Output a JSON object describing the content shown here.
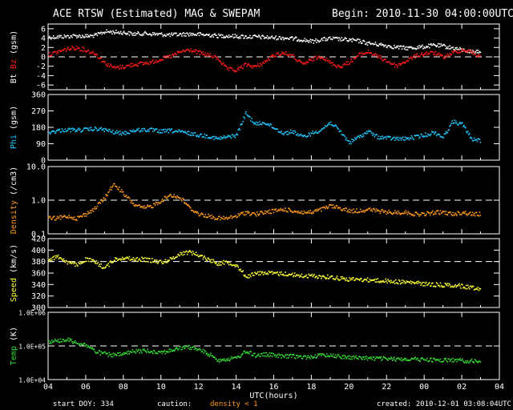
{
  "header": {
    "title": "ACE RTSW (Estimated) MAG & SWEPAM",
    "begin": "Begin: 2010-11-30 04:00:00UTC"
  },
  "footer": {
    "start_doy": "start DOY: 334",
    "caution_label": "caution:",
    "caution_text": "density < 1",
    "created": "created: 2010-12-01 03:08:04UTC"
  },
  "colors": {
    "background": "#000000",
    "axes": "#ffffff",
    "bt": "#ffffff",
    "bz": "#ff1a1a",
    "phi": "#1ec8ff",
    "density": "#ff9a1a",
    "speed": "#ffff33",
    "temp": "#33dd33"
  },
  "chart_data": {
    "type": "scatter",
    "xlabel": "UTC(hours)",
    "xlim": [
      0,
      24
    ],
    "x_ticks": [
      "04",
      "06",
      "08",
      "10",
      "12",
      "14",
      "16",
      "18",
      "20",
      "22",
      "00",
      "02",
      "04"
    ],
    "panels": [
      {
        "id": "mag",
        "ylabel_parts": [
          "Bt",
          "Bz",
          "(gsm)"
        ],
        "ylim": [
          -7,
          7
        ],
        "y_ticks": [
          "6",
          "4",
          "2",
          "0",
          "-2",
          "-4",
          "-6"
        ],
        "y_tick_values": [
          6,
          4,
          2,
          0,
          -2,
          -4,
          -6
        ],
        "dashed_line": 0,
        "series": [
          {
            "name": "Bt",
            "x": [
              0,
              0.5,
              1,
              1.5,
              2,
              2.5,
              3,
              3.5,
              4,
              4.5,
              5,
              5.5,
              6,
              6.5,
              7,
              7.5,
              8,
              8.5,
              9,
              9.5,
              10,
              10.5,
              11,
              11.5,
              12,
              12.5,
              13,
              13.5,
              14,
              14.5,
              15,
              15.5,
              16,
              16.5,
              17,
              17.5,
              18,
              18.5,
              19,
              19.5,
              20,
              20.5,
              21,
              21.5,
              22,
              22.5,
              23
            ],
            "y": [
              4.3,
              4.4,
              4.5,
              4.6,
              4.5,
              4.7,
              5.5,
              5.4,
              5.3,
              5.0,
              5.1,
              5.0,
              4.9,
              4.8,
              4.9,
              5.0,
              4.9,
              4.8,
              4.6,
              4.6,
              4.5,
              4.4,
              4.4,
              4.3,
              4.2,
              4.2,
              4.0,
              3.8,
              3.4,
              3.8,
              4.0,
              3.9,
              3.7,
              3.5,
              3.0,
              2.8,
              2.5,
              2.2,
              2.0,
              2.1,
              2.3,
              2.6,
              2.4,
              2.0,
              1.6,
              1.2,
              1.4
            ]
          },
          {
            "name": "Bz",
            "x": [
              0,
              0.5,
              1,
              1.5,
              2,
              2.5,
              3,
              3.5,
              4,
              4.5,
              5,
              5.5,
              6,
              6.5,
              7,
              7.5,
              8,
              8.5,
              9,
              9.5,
              10,
              10.5,
              11,
              11.5,
              12,
              12.5,
              13,
              13.5,
              14,
              14.5,
              15,
              15.5,
              16,
              16.5,
              17,
              17.5,
              18,
              18.5,
              19,
              19.5,
              20,
              20.5,
              21,
              21.5,
              22,
              22.5,
              23
            ],
            "y": [
              0.6,
              1.2,
              1.8,
              2.1,
              1.5,
              0.8,
              -1.2,
              -2.2,
              -2.0,
              -1.5,
              -1.3,
              -1.0,
              -0.3,
              0.2,
              1.2,
              1.6,
              1.0,
              0.5,
              -0.2,
              -2.5,
              -2.8,
              -1.5,
              -2.0,
              -1.0,
              0.5,
              1.0,
              0.2,
              -1.5,
              -0.5,
              0.3,
              -1.2,
              -2.0,
              -1.0,
              0.5,
              1.2,
              0.2,
              -0.8,
              -1.8,
              -0.8,
              0.3,
              0.8,
              1.0,
              0.0,
              1.0,
              1.6,
              1.2,
              0.0
            ]
          }
        ]
      },
      {
        "id": "phi",
        "ylabel_parts": [
          "Phi",
          "(gsm)"
        ],
        "ylim": [
          0,
          360
        ],
        "y_ticks": [
          "360",
          "270",
          "180",
          "90",
          "0"
        ],
        "y_tick_values": [
          360,
          270,
          180,
          90,
          0
        ],
        "dashed_line": null,
        "series": [
          {
            "name": "Phi",
            "x": [
              0,
              0.5,
              1,
              1.5,
              2,
              2.5,
              3,
              3.5,
              4,
              4.5,
              5,
              5.5,
              6,
              6.5,
              7,
              7.5,
              8,
              8.5,
              9,
              9.5,
              10,
              10.5,
              11,
              11.5,
              12,
              12.5,
              13,
              13.5,
              14,
              14.5,
              15,
              15.5,
              16,
              16.5,
              17,
              17.5,
              18,
              18.5,
              19,
              19.5,
              20,
              20.5,
              21,
              21.5,
              22,
              22.5,
              23
            ],
            "y": [
              155,
              165,
              170,
              168,
              170,
              175,
              170,
              155,
              150,
              165,
              170,
              168,
              160,
              165,
              158,
              150,
              140,
              135,
              120,
              130,
              140,
              260,
              200,
              210,
              180,
              150,
              160,
              130,
              150,
              170,
              210,
              160,
              100,
              130,
              160,
              130,
              125,
              120,
              120,
              130,
              140,
              155,
              130,
              215,
              200,
              120,
              110
            ]
          }
        ]
      },
      {
        "id": "density",
        "ylabel_parts": [
          "Density",
          "(/cm3)"
        ],
        "ylim": [
          0.1,
          10
        ],
        "log": true,
        "y_ticks": [
          "10.0",
          "1.0",
          "0.1"
        ],
        "y_tick_values": [
          10,
          1,
          0.1
        ],
        "dashed_line": 1,
        "series": [
          {
            "name": "Density",
            "x": [
              0,
              0.5,
              1,
              1.5,
              2,
              2.5,
              3,
              3.5,
              4,
              4.5,
              5,
              5.5,
              6,
              6.5,
              7,
              7.5,
              8,
              8.5,
              9,
              9.5,
              10,
              10.5,
              11,
              11.5,
              12,
              12.5,
              13,
              13.5,
              14,
              14.5,
              15,
              15.5,
              16,
              16.5,
              17,
              17.5,
              18,
              18.5,
              19,
              19.5,
              20,
              20.5,
              21,
              21.5,
              22,
              22.5,
              23
            ],
            "y": [
              0.3,
              0.3,
              0.35,
              0.3,
              0.4,
              0.6,
              1.2,
              3.0,
              1.5,
              0.8,
              0.6,
              0.7,
              1.0,
              1.5,
              1.2,
              0.6,
              0.4,
              0.35,
              0.3,
              0.3,
              0.35,
              0.45,
              0.4,
              0.45,
              0.5,
              0.55,
              0.5,
              0.45,
              0.45,
              0.55,
              0.7,
              0.6,
              0.5,
              0.5,
              0.55,
              0.5,
              0.45,
              0.45,
              0.45,
              0.4,
              0.4,
              0.45,
              0.45,
              0.4,
              0.45,
              0.4,
              0.4
            ]
          }
        ]
      },
      {
        "id": "speed",
        "ylabel_parts": [
          "Speed",
          "(km/s)"
        ],
        "ylim": [
          300,
          420
        ],
        "y_ticks": [
          "420",
          "400",
          "380",
          "360",
          "340",
          "320",
          "300"
        ],
        "y_tick_values": [
          420,
          400,
          380,
          360,
          340,
          320,
          300
        ],
        "dashed_line": 380,
        "series": [
          {
            "name": "Speed",
            "x": [
              0,
              0.5,
              1,
              1.5,
              2,
              2.5,
              3,
              3.5,
              4,
              4.5,
              5,
              5.5,
              6,
              6.5,
              7,
              7.5,
              8,
              8.5,
              9,
              9.5,
              10,
              10.5,
              11,
              11.5,
              12,
              12.5,
              13,
              13.5,
              14,
              14.5,
              15,
              15.5,
              16,
              16.5,
              17,
              17.5,
              18,
              18.5,
              19,
              19.5,
              20,
              20.5,
              21,
              21.5,
              22,
              22.5,
              23
            ],
            "y": [
              385,
              390,
              380,
              375,
              385,
              380,
              370,
              385,
              388,
              385,
              385,
              383,
              380,
              385,
              395,
              398,
              392,
              385,
              378,
              380,
              375,
              355,
              360,
              362,
              360,
              360,
              358,
              356,
              356,
              355,
              354,
              352,
              350,
              350,
              349,
              348,
              347,
              346,
              345,
              344,
              342,
              341,
              340,
              340,
              338,
              336,
              334
            ]
          }
        ]
      },
      {
        "id": "temp",
        "ylabel_parts": [
          "Temp",
          "(K)"
        ],
        "ylim": [
          10000,
          1000000
        ],
        "log": true,
        "y_ticks": [
          "1.0E+06",
          "1.0E+05",
          "1.0E+04"
        ],
        "y_tick_values": [
          1000000,
          100000,
          10000
        ],
        "dashed_line": 100000,
        "series": [
          {
            "name": "Temp",
            "x": [
              0,
              0.5,
              1,
              1.5,
              2,
              2.5,
              3,
              3.5,
              4,
              4.5,
              5,
              5.5,
              6,
              6.5,
              7,
              7.5,
              8,
              8.5,
              9,
              9.5,
              10,
              10.5,
              11,
              11.5,
              12,
              12.5,
              13,
              13.5,
              14,
              14.5,
              15,
              15.5,
              16,
              16.5,
              17,
              17.5,
              18,
              18.5,
              19,
              19.5,
              20,
              20.5,
              21,
              21.5,
              22,
              22.5,
              23
            ],
            "y": [
              140000,
              150000,
              160000,
              130000,
              110000,
              70000,
              60000,
              55000,
              60000,
              70000,
              75000,
              72000,
              68000,
              75000,
              90000,
              95000,
              80000,
              60000,
              40000,
              42000,
              45000,
              70000,
              55000,
              58000,
              55000,
              50000,
              52000,
              48000,
              50000,
              55000,
              56000,
              50000,
              48000,
              46000,
              45000,
              44000,
              43000,
              42000,
              43000,
              42000,
              41000,
              40000,
              39000,
              40000,
              38000,
              37000,
              36000
            ]
          }
        ]
      }
    ]
  }
}
